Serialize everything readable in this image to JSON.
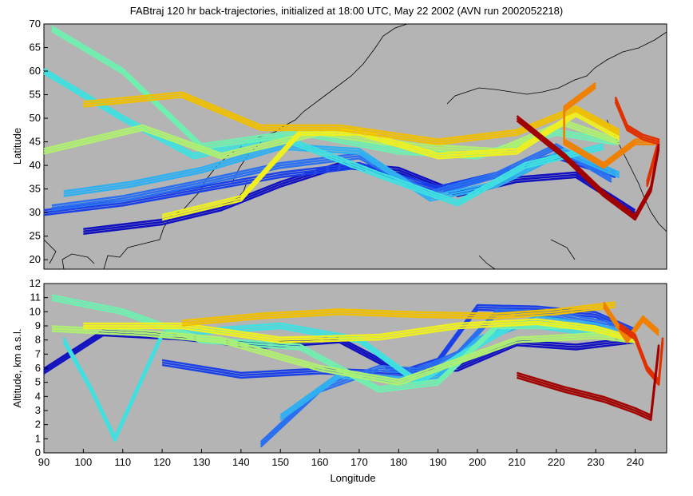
{
  "chart_data": [
    {
      "type": "line",
      "panel": "map",
      "title": "FABtraj 120 hr back-trajectories, initialized at 18:00 UTC, May 22 2002 (AVN run 2002052218)",
      "xlabel": "",
      "ylabel": "Latitude",
      "xlim": [
        90,
        248
      ],
      "ylim": [
        18,
        70
      ],
      "yticks": [
        20,
        25,
        30,
        35,
        40,
        45,
        50,
        55,
        60,
        65,
        70
      ],
      "background": "#b4b4b4",
      "grid": false,
      "series": [
        {
          "color": "#1010c0",
          "x": [
            100,
            120,
            135,
            150,
            165,
            180,
            195,
            210,
            225,
            240
          ],
          "y": [
            26,
            28,
            31,
            36,
            40,
            39,
            34,
            37,
            38,
            30
          ]
        },
        {
          "color": "#1a40e8",
          "x": [
            90,
            110,
            130,
            150,
            170,
            190,
            205,
            220,
            235
          ],
          "y": [
            30,
            32,
            35,
            38,
            40,
            35,
            38,
            42,
            38
          ]
        },
        {
          "color": "#2a70f0",
          "x": [
            92,
            110,
            128,
            150,
            170,
            188,
            205,
            220,
            234
          ],
          "y": [
            31,
            33,
            36,
            40,
            42,
            34,
            38,
            44,
            37
          ]
        },
        {
          "color": "#30b0f0",
          "x": [
            95,
            112,
            130,
            150,
            170,
            188,
            205,
            222,
            236
          ],
          "y": [
            34,
            36,
            39,
            44,
            43,
            33,
            36,
            43,
            38
          ]
        },
        {
          "color": "#40e0e0",
          "x": [
            90,
            110,
            128,
            150,
            175,
            195,
            212,
            232
          ],
          "y": [
            60,
            50,
            42,
            46,
            38,
            32,
            40,
            44
          ]
        },
        {
          "color": "#70f0b0",
          "x": [
            92,
            110,
            130,
            155,
            180,
            200,
            220,
            235
          ],
          "y": [
            69,
            60,
            44,
            47,
            43,
            42,
            47,
            45
          ]
        },
        {
          "color": "#b0f070",
          "x": [
            90,
            115,
            135,
            160,
            185,
            205,
            222,
            236
          ],
          "y": [
            43,
            48,
            42,
            47,
            44,
            43,
            49,
            45
          ]
        },
        {
          "color": "#f0f020",
          "x": [
            120,
            140,
            155,
            170,
            190,
            210,
            225,
            236
          ],
          "y": [
            29,
            33,
            47,
            47,
            42,
            43,
            51,
            46
          ]
        },
        {
          "color": "#f0c000",
          "x": [
            100,
            125,
            145,
            165,
            190,
            210,
            225,
            236
          ],
          "y": [
            53,
            55,
            48,
            48,
            45,
            47,
            52,
            47
          ]
        },
        {
          "color": "#f08000",
          "x": [
            230,
            222,
            222,
            232,
            240,
            245
          ],
          "y": [
            57,
            52,
            45,
            40,
            45,
            45
          ]
        },
        {
          "color": "#e03000",
          "x": [
            235,
            238,
            242,
            246,
            243
          ],
          "y": [
            54,
            48,
            46,
            45,
            36
          ]
        },
        {
          "color": "#a00000",
          "x": [
            210,
            222,
            232,
            240,
            244,
            246
          ],
          "y": [
            50,
            42,
            34,
            29,
            35,
            44
          ]
        }
      ]
    },
    {
      "type": "line",
      "panel": "altitude",
      "xlabel": "Longitude",
      "ylabel": "Altitude, km a.s.l.",
      "xlim": [
        90,
        248
      ],
      "ylim": [
        0,
        12
      ],
      "xticks": [
        90,
        100,
        110,
        120,
        130,
        140,
        150,
        160,
        170,
        180,
        190,
        200,
        210,
        220,
        230,
        240
      ],
      "yticks": [
        0,
        1,
        2,
        3,
        4,
        5,
        6,
        7,
        8,
        9,
        10,
        11,
        12
      ],
      "background": "#b4b4b4",
      "grid": false,
      "series": [
        {
          "color": "#1010c0",
          "x": [
            90,
            105,
            125,
            145,
            165,
            180,
            195,
            210,
            225,
            240
          ],
          "y": [
            5.8,
            8.5,
            8.2,
            7.6,
            8.0,
            5.8,
            6.0,
            7.8,
            7.5,
            8.0
          ]
        },
        {
          "color": "#1a40e8",
          "x": [
            120,
            140,
            160,
            180,
            190,
            200,
            215,
            230,
            240
          ],
          "y": [
            6.4,
            5.5,
            5.8,
            5.6,
            6.5,
            10.3,
            10.2,
            9.8,
            8.6
          ]
        },
        {
          "color": "#2a70f0",
          "x": [
            145,
            160,
            175,
            185,
            195,
            205,
            220,
            235
          ],
          "y": [
            0.6,
            4.5,
            6.0,
            5.8,
            7.0,
            10.0,
            9.8,
            9.0
          ]
        },
        {
          "color": "#30b0f0",
          "x": [
            150,
            165,
            180,
            190,
            200,
            215,
            230,
            240
          ],
          "y": [
            2.5,
            5.5,
            5.2,
            5.5,
            8.0,
            9.5,
            9.0,
            8.2
          ]
        },
        {
          "color": "#40e0e0",
          "x": [
            95,
            102,
            108,
            120,
            150,
            170,
            185,
            195,
            210,
            230
          ],
          "y": [
            8.0,
            4.5,
            1.0,
            8.4,
            9.0,
            8.0,
            5.0,
            6.8,
            9.2,
            8.5
          ]
        },
        {
          "color": "#70f0b0",
          "x": [
            92,
            110,
            130,
            155,
            175,
            190,
            205,
            225,
            240
          ],
          "y": [
            11.0,
            10.0,
            8.0,
            7.5,
            4.5,
            5.0,
            9.0,
            9.0,
            8.0
          ]
        },
        {
          "color": "#b0f070",
          "x": [
            92,
            115,
            135,
            160,
            180,
            195,
            210,
            230,
            240
          ],
          "y": [
            8.8,
            8.5,
            8.0,
            6.0,
            5.0,
            6.5,
            8.0,
            8.3,
            8.0
          ]
        },
        {
          "color": "#f0f020",
          "x": [
            100,
            125,
            150,
            175,
            195,
            215,
            230,
            240
          ],
          "y": [
            9.0,
            9.0,
            8.0,
            8.2,
            9.0,
            9.3,
            8.8,
            8.0
          ]
        },
        {
          "color": "#f0c000",
          "x": [
            125,
            145,
            165,
            185,
            205,
            220,
            235
          ],
          "y": [
            9.2,
            9.7,
            10.0,
            9.8,
            9.7,
            10.0,
            10.5
          ]
        },
        {
          "color": "#f08000",
          "x": [
            232,
            238,
            242,
            246
          ],
          "y": [
            10.5,
            8.0,
            9.5,
            8.5
          ]
        },
        {
          "color": "#e03000",
          "x": [
            236,
            240,
            243,
            246,
            247
          ],
          "y": [
            9.0,
            8.2,
            6.0,
            5.0,
            8.0
          ]
        },
        {
          "color": "#a00000",
          "x": [
            210,
            222,
            232,
            240,
            244,
            246
          ],
          "y": [
            5.5,
            4.5,
            3.8,
            3.0,
            2.5,
            7.5
          ]
        }
      ]
    }
  ]
}
